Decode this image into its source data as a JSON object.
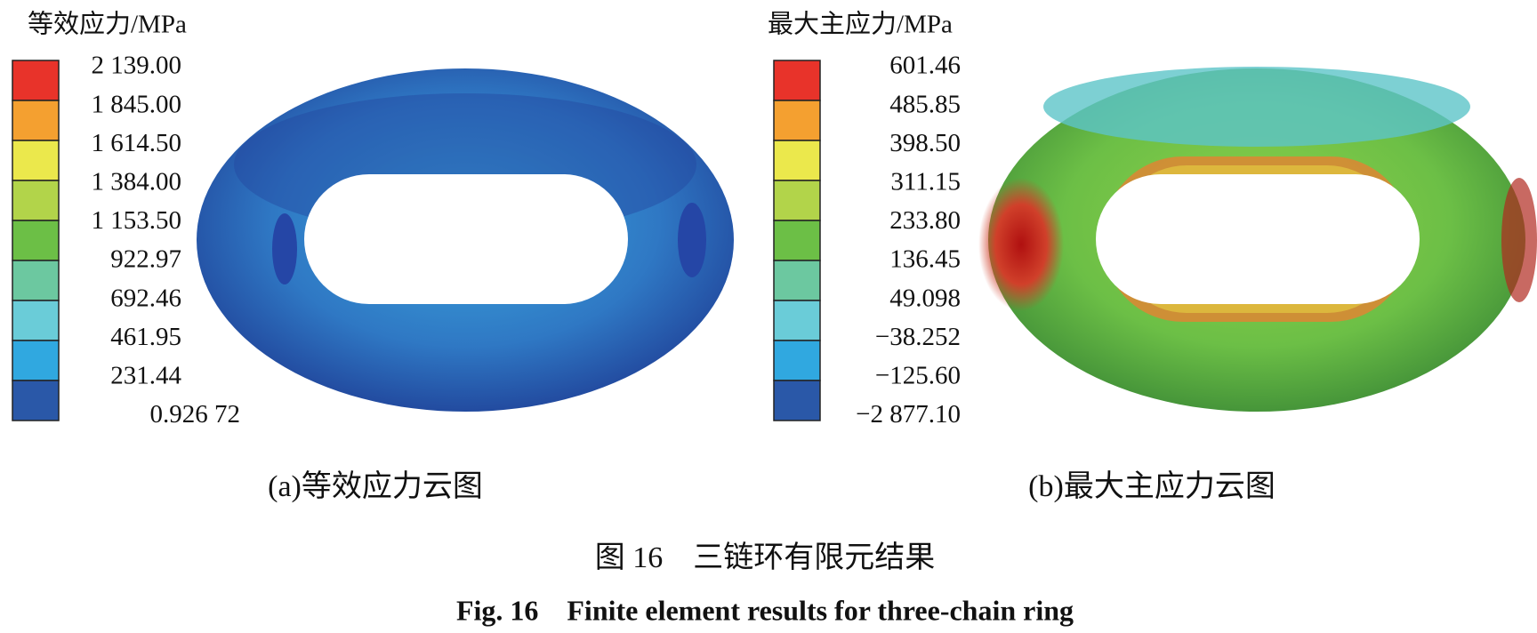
{
  "panels": [
    {
      "legend_title": "等效应力/MPa",
      "legend_labels": [
        "2 139.00",
        "1 845.00",
        "1 614.50",
        "1 384.00",
        "1 153.50",
        "922.97",
        "692.46",
        "461.95",
        "231.44",
        "0.926 72"
      ],
      "caption": "(a)等效应力云图"
    },
    {
      "legend_title": "最大主应力/MPa",
      "legend_labels": [
        "601.46",
        "485.85",
        "398.50",
        "311.15",
        "233.80",
        "136.45",
        "49.098",
        "−38.252",
        "−125.60",
        "−2 877.10"
      ],
      "caption": "(b)最大主应力云图"
    }
  ],
  "figure_caption_cn": "图 16　三链环有限元结果",
  "figure_caption_en": "Fig. 16　Finite element results for three-chain ring"
}
